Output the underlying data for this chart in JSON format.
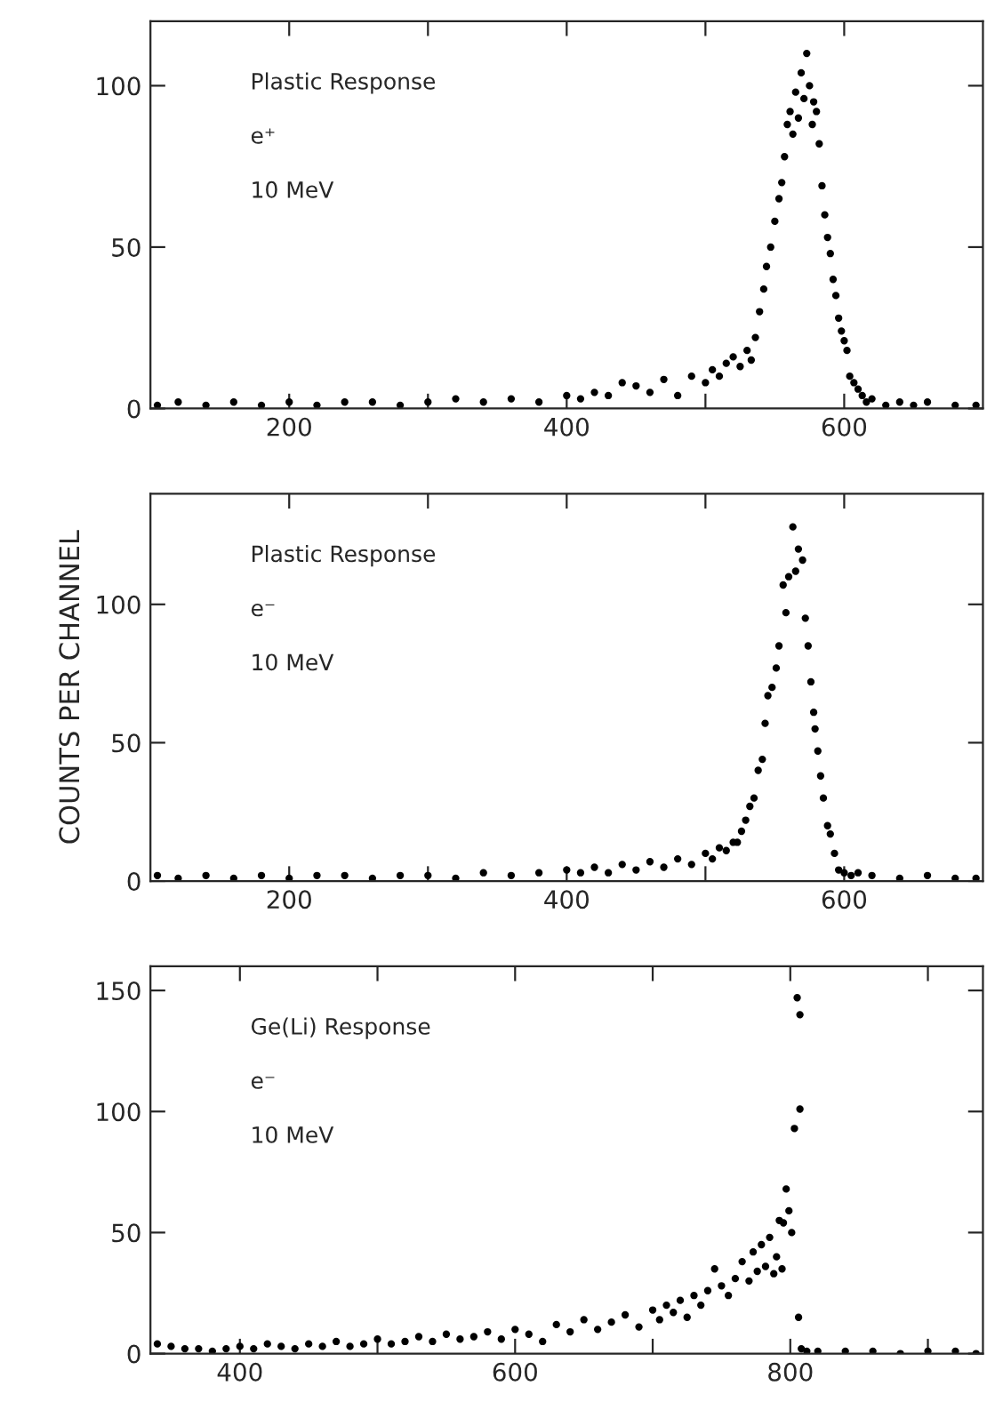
{
  "chart_data": [
    {
      "type": "scatter",
      "marker": "circle",
      "annotations": [
        "Plastic Response",
        "e⁺",
        "10 MeV"
      ],
      "xlim": [
        100,
        700
      ],
      "ylim": [
        0,
        120
      ],
      "xticks": [
        200,
        {
          "value": 300,
          "label": null
        },
        400,
        {
          "value": 500,
          "label": null
        },
        600
      ],
      "yticks": [
        0,
        50,
        100
      ],
      "series": [
        {
          "color": "#000000",
          "x": [
            105,
            120,
            140,
            160,
            180,
            200,
            220,
            240,
            260,
            280,
            300,
            320,
            340,
            360,
            380,
            400,
            410,
            420,
            430,
            440,
            450,
            460,
            470,
            480,
            490,
            500,
            505,
            510,
            515,
            520,
            525,
            530,
            533,
            536,
            539,
            542,
            544,
            547,
            550,
            553,
            555,
            557,
            559,
            561,
            563,
            565,
            567,
            569,
            571,
            573,
            575,
            577,
            578,
            580,
            582,
            584,
            586,
            588,
            590,
            592,
            594,
            596,
            598,
            600,
            602,
            604,
            607,
            610,
            613,
            616,
            620,
            630,
            640,
            650,
            660,
            680,
            695
          ],
          "values": [
            1,
            2,
            1,
            2,
            1,
            2,
            1,
            2,
            2,
            1,
            2,
            3,
            2,
            3,
            2,
            4,
            3,
            5,
            4,
            8,
            7,
            5,
            9,
            4,
            10,
            8,
            12,
            10,
            14,
            16,
            13,
            18,
            15,
            22,
            30,
            37,
            44,
            50,
            58,
            65,
            70,
            78,
            88,
            92,
            85,
            98,
            90,
            104,
            96,
            110,
            100,
            88,
            95,
            92,
            82,
            69,
            60,
            53,
            48,
            40,
            35,
            28,
            24,
            21,
            18,
            10,
            8,
            6,
            4,
            2,
            3,
            1,
            2,
            1,
            2,
            1,
            1
          ]
        }
      ]
    },
    {
      "type": "scatter",
      "marker": "circle",
      "ylabel": "COUNTS PER CHANNEL",
      "annotations": [
        "Plastic Response",
        "e⁻",
        "10 MeV"
      ],
      "xlim": [
        100,
        700
      ],
      "ylim": [
        0,
        140
      ],
      "xticks": [
        200,
        {
          "value": 300,
          "label": null
        },
        400,
        {
          "value": 500,
          "label": null
        },
        600
      ],
      "yticks": [
        0,
        50,
        100
      ],
      "series": [
        {
          "color": "#000000",
          "x": [
            105,
            120,
            140,
            160,
            180,
            200,
            220,
            240,
            260,
            280,
            300,
            320,
            340,
            360,
            380,
            400,
            410,
            420,
            430,
            440,
            450,
            460,
            470,
            480,
            490,
            500,
            505,
            510,
            515,
            520,
            523,
            526,
            529,
            532,
            535,
            538,
            541,
            543,
            545,
            548,
            551,
            553,
            556,
            558,
            560,
            563,
            565,
            567,
            570,
            572,
            574,
            576,
            578,
            579,
            581,
            583,
            585,
            588,
            590,
            593,
            596,
            600,
            605,
            610,
            620,
            640,
            660,
            680,
            695
          ],
          "values": [
            2,
            1,
            2,
            1,
            2,
            1,
            2,
            2,
            1,
            2,
            2,
            1,
            3,
            2,
            3,
            4,
            3,
            5,
            3,
            6,
            4,
            7,
            5,
            8,
            6,
            10,
            8,
            12,
            11,
            14,
            14,
            18,
            22,
            27,
            30,
            40,
            44,
            57,
            67,
            70,
            77,
            85,
            107,
            97,
            110,
            128,
            112,
            120,
            116,
            95,
            85,
            72,
            61,
            55,
            47,
            38,
            30,
            20,
            17,
            10,
            4,
            3,
            2,
            3,
            2,
            1,
            2,
            1,
            1
          ]
        }
      ]
    },
    {
      "type": "scatter",
      "marker": "circle",
      "annotations": [
        "Ge(Li) Response",
        "e⁻",
        "10 MeV"
      ],
      "xlim": [
        335,
        940
      ],
      "ylim": [
        0,
        160
      ],
      "xticks": [
        400,
        {
          "value": 500,
          "label": null
        },
        600,
        {
          "value": 700,
          "label": null
        },
        800,
        {
          "value": 900,
          "label": null
        }
      ],
      "yticks": [
        0,
        50,
        100,
        150
      ],
      "series": [
        {
          "color": "#000000",
          "x": [
            340,
            350,
            360,
            370,
            380,
            390,
            400,
            410,
            420,
            430,
            440,
            450,
            460,
            470,
            480,
            490,
            500,
            510,
            520,
            530,
            540,
            550,
            560,
            570,
            580,
            590,
            600,
            610,
            620,
            630,
            640,
            650,
            660,
            670,
            680,
            690,
            700,
            705,
            710,
            715,
            720,
            725,
            730,
            735,
            740,
            745,
            750,
            755,
            760,
            765,
            770,
            773,
            776,
            779,
            782,
            785,
            788,
            790,
            792,
            794,
            795,
            797,
            799,
            801,
            803,
            805,
            806,
            807,
            807,
            808,
            812,
            820,
            840,
            860,
            880,
            900,
            920,
            935
          ],
          "values": [
            4,
            3,
            2,
            2,
            1,
            2,
            3,
            2,
            4,
            3,
            2,
            4,
            3,
            5,
            3,
            4,
            6,
            4,
            5,
            7,
            5,
            8,
            6,
            7,
            9,
            6,
            10,
            8,
            5,
            12,
            9,
            14,
            10,
            13,
            16,
            11,
            18,
            14,
            20,
            17,
            22,
            15,
            24,
            20,
            26,
            35,
            28,
            24,
            31,
            38,
            30,
            42,
            34,
            45,
            36,
            48,
            33,
            40,
            55,
            35,
            54,
            68,
            59,
            50,
            93,
            147,
            15,
            140,
            101,
            2,
            1,
            1,
            1,
            1,
            0,
            1,
            1,
            0
          ]
        }
      ]
    }
  ]
}
